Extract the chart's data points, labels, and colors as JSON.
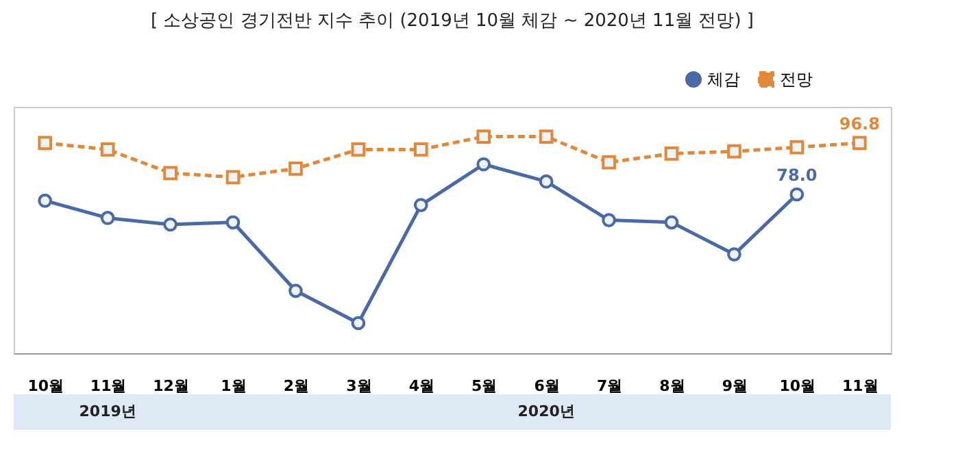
{
  "chart_data": {
    "type": "line",
    "title": "[ 소상공인 경기전반 지수 추이 (2019년 10월 체감 ~ 2020년 11월 전망) ]",
    "categories": [
      "10월",
      "11월",
      "12월",
      "1월",
      "2월",
      "3월",
      "4월",
      "5월",
      "6월",
      "7월",
      "8월",
      "9월",
      "10월",
      "11월"
    ],
    "series": [
      {
        "name": "체감",
        "color": "#4a6aa5",
        "marker": "circle",
        "line_style": "solid",
        "values": [
          75.7,
          69.4,
          67.0,
          67.8,
          42.8,
          31.0,
          74.1,
          89.0,
          82.7,
          68.6,
          67.8,
          56.1,
          78.0,
          null
        ],
        "value_labels": [
          null,
          null,
          null,
          null,
          null,
          null,
          null,
          null,
          null,
          null,
          null,
          null,
          "78.0",
          null
        ]
      },
      {
        "name": "전망",
        "color": "#e2883a",
        "marker": "square",
        "line_style": "dashed",
        "values": [
          96.8,
          94.4,
          85.8,
          84.3,
          87.4,
          94.4,
          94.4,
          99.1,
          99.1,
          89.7,
          92.9,
          93.7,
          95.2,
          96.8
        ],
        "value_labels": [
          null,
          null,
          null,
          null,
          null,
          null,
          null,
          null,
          null,
          null,
          null,
          null,
          null,
          "96.8"
        ]
      }
    ],
    "ylim": [
      20,
      110
    ],
    "tick_labels": "x",
    "grid": false,
    "legend": "top right",
    "annotations": [
      "2019년",
      "2020년"
    ]
  }
}
